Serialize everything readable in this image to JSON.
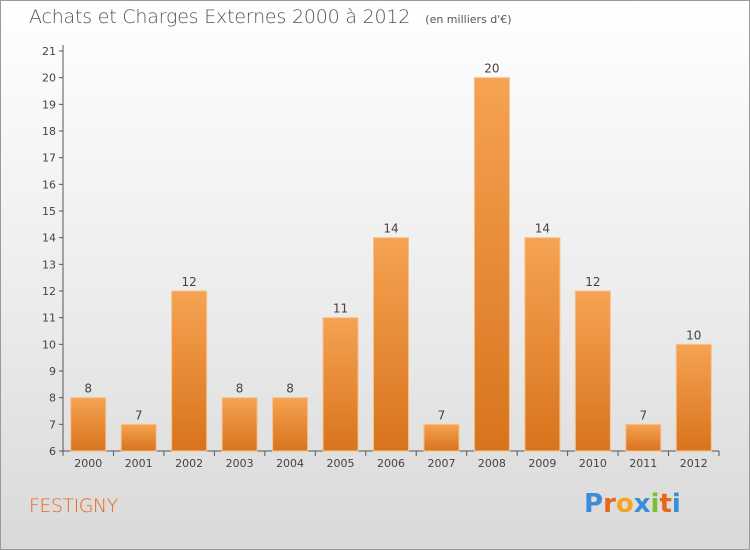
{
  "header": {
    "title": "Achats et Charges Externes 2000 à 2012",
    "subtitle": "(en milliers d'€)"
  },
  "footer": {
    "commune": "FESTIGNY",
    "logo_text": "Proxiti",
    "logo_letters": [
      "P",
      "r",
      "o",
      "x",
      "i",
      "t",
      "i"
    ],
    "logo_colors": [
      "#3b8ed6",
      "#e8661a",
      "#f4a51f",
      "#3b8ed6",
      "#7cbf2f",
      "#e8661a",
      "#3b8ed6"
    ]
  },
  "colors": {
    "bar_top": "#f5a352",
    "bar_bottom": "#d9731d",
    "commune": "#e8661a"
  },
  "chart_data": {
    "type": "bar",
    "title": "Achats et Charges Externes 2000 à 2012",
    "subtitle": "(en milliers d'€)",
    "categories": [
      "2000",
      "2001",
      "2002",
      "2003",
      "2004",
      "2005",
      "2006",
      "2007",
      "2008",
      "2009",
      "2010",
      "2011",
      "2012"
    ],
    "values": [
      8,
      7,
      12,
      8,
      8,
      11,
      14,
      7,
      20,
      14,
      12,
      7,
      10
    ],
    "ylim": [
      6,
      21
    ],
    "yticks": [
      6,
      7,
      8,
      9,
      10,
      11,
      12,
      13,
      14,
      15,
      16,
      17,
      18,
      19,
      20,
      21
    ],
    "xlabel": "",
    "ylabel": "",
    "grid": false,
    "data_labels": true
  }
}
